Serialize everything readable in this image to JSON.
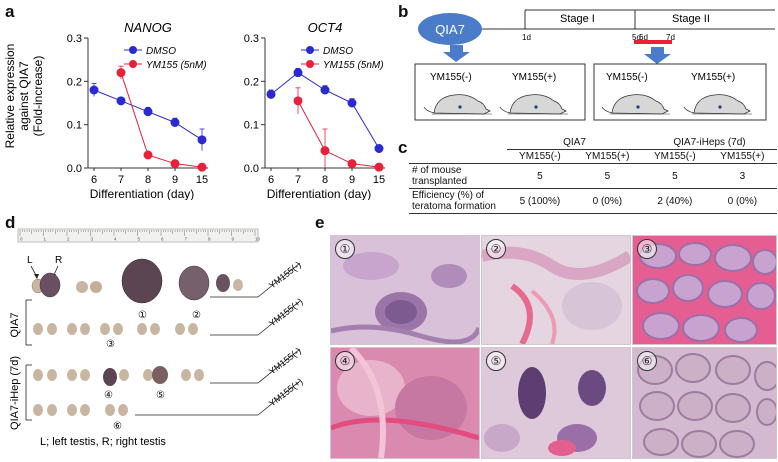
{
  "panel_labels": {
    "a": "a",
    "b": "b",
    "c": "c",
    "d": "d",
    "e": "e"
  },
  "chart_data": [
    {
      "type": "line",
      "title": "NANOG",
      "ylabel": "Relative expression against QIA7 (Fold-increase)",
      "ylabel_lines": [
        "Relative expression",
        "against QIA7",
        "(Fold-increase)"
      ],
      "xlabel": "Differentiation (day)",
      "categories": [
        "6",
        "7",
        "8",
        "9",
        "15"
      ],
      "ylim": [
        0,
        0.3
      ],
      "yticks": [
        "0.0",
        "0.1",
        "0.2",
        "0.3"
      ],
      "series": [
        {
          "name": "DMSO",
          "color": "#2a2ad0",
          "values": [
            0.18,
            0.155,
            0.13,
            0.105,
            0.065
          ],
          "errors": [
            0.015,
            0.005,
            0.01,
            0.01,
            0.025
          ]
        },
        {
          "name": "YM155 (5nM)",
          "color": "#e8203a",
          "values": [
            null,
            0.22,
            0.03,
            0.01,
            0.002
          ],
          "errors": [
            null,
            0.015,
            0.005,
            0.004,
            0.002
          ]
        }
      ]
    },
    {
      "type": "line",
      "title": "OCT4",
      "ylabel": "",
      "xlabel": "Differentiation (day)",
      "categories": [
        "6",
        "7",
        "8",
        "9",
        "15"
      ],
      "ylim": [
        0,
        0.3
      ],
      "yticks": [
        "0.0",
        "0.1",
        "0.2",
        "0.3"
      ],
      "series": [
        {
          "name": "DMSO",
          "color": "#2a2ad0",
          "values": [
            0.17,
            0.22,
            0.18,
            0.15,
            0.045
          ],
          "errors": [
            0.01,
            0.01,
            0.01,
            0.01,
            0.005
          ]
        },
        {
          "name": "YM155 (5nM)",
          "color": "#e8203a",
          "values": [
            null,
            0.155,
            0.04,
            0.01,
            0.002
          ],
          "errors": [
            null,
            0.03,
            0.05,
            0.005,
            0.002
          ]
        }
      ]
    }
  ],
  "schematic": {
    "cell_line": "QIA7",
    "stage1": "Stage I",
    "stage2": "Stage II",
    "day_ticks": [
      "1d",
      "5d",
      "6d",
      "7d"
    ],
    "box1": {
      "left": "YM155(-)",
      "right": "YM155(+)"
    },
    "box2": {
      "left": "YM155(-)",
      "right": "YM155(+)"
    }
  },
  "table": {
    "group1": "QIA7",
    "group2": "QIA7-iHeps (7d)",
    "subheaders": [
      "YM155(-)",
      "YM155(+)",
      "YM155(-)",
      "YM155(+)"
    ],
    "rows": [
      {
        "label_lines": [
          "# of mouse",
          "transplanted"
        ],
        "values": [
          "5",
          "5",
          "5",
          "3"
        ]
      },
      {
        "label_lines": [
          "Efficiency (%) of",
          "teratoma formation"
        ],
        "values": [
          "5 (100%)",
          "0 (0%)",
          "2 (40%)",
          "0 (0%)"
        ]
      }
    ]
  },
  "testis": {
    "ruler_marks": [
      "0",
      "1",
      "2",
      "3",
      "4",
      "5",
      "6",
      "7",
      "8",
      "9",
      "10"
    ],
    "L": "L",
    "R": "R",
    "qia7": "QIA7",
    "ihep": "QIA7-iHep (7d)",
    "ym_minus": "YM155(-)",
    "ym_plus": "YM155(+)",
    "numbers": [
      "①",
      "②",
      "③",
      "④",
      "⑤",
      "⑥"
    ],
    "caption": "L; left testis, R; right testis"
  },
  "histology": {
    "labels": [
      "①",
      "②",
      "③",
      "④",
      "⑤",
      "⑥"
    ]
  }
}
